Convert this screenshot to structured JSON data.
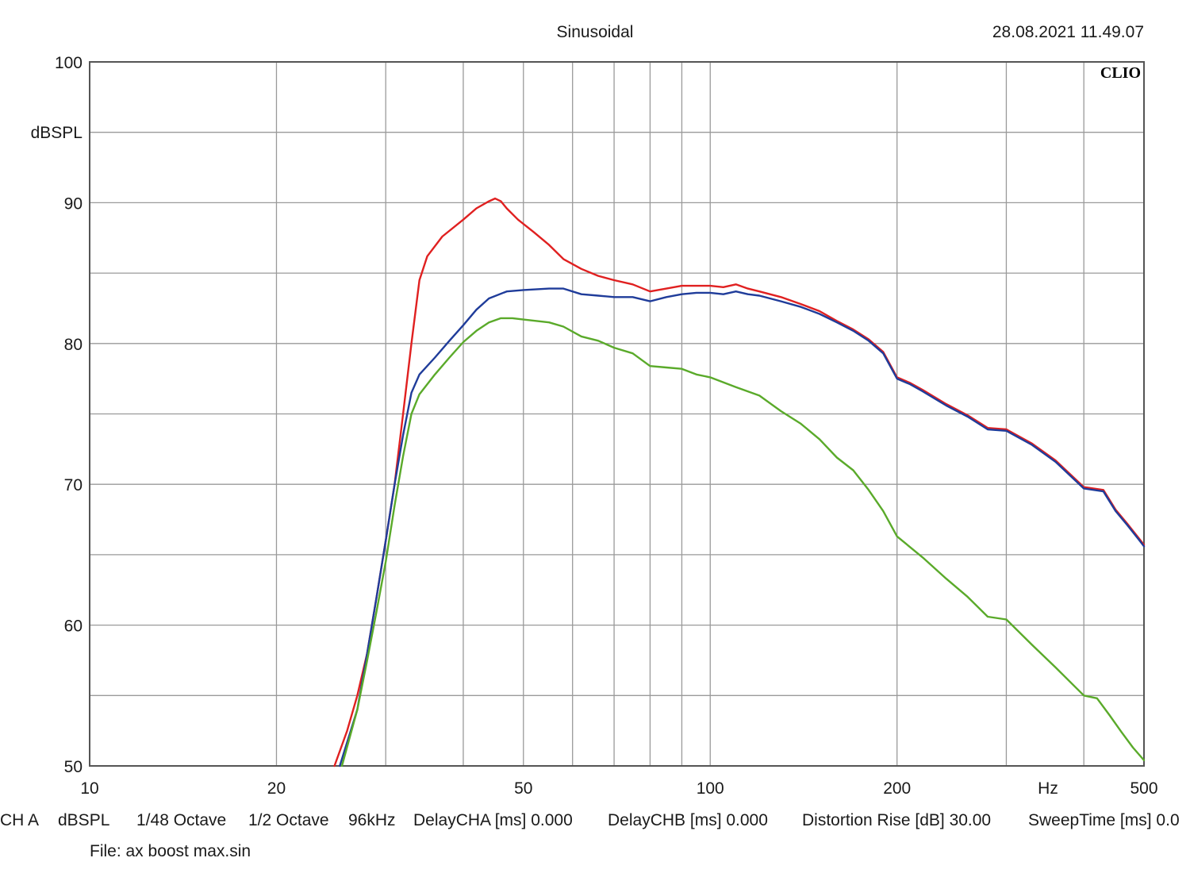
{
  "header": {
    "title": "Sinusoidal",
    "timestamp": "28.08.2021 11.49.07",
    "logo": "CLIO"
  },
  "footer": {
    "settings": [
      "CH A",
      "dBSPL",
      "1/48 Octave",
      "1/2 Octave",
      "96kHz",
      "DelayCHA [ms] 0.000",
      "DelayCHB [ms] 0.000",
      "Distortion Rise [dB] 30.00",
      "SweepTime [ms] 0.0"
    ],
    "file": "File: ax boost max.sin"
  },
  "chart_data": {
    "type": "line",
    "title": "Sinusoidal",
    "ylabel": "dBSPL",
    "xlabel": "Hz",
    "x_scale": "log",
    "xlim": [
      10,
      500
    ],
    "ylim": [
      50,
      100
    ],
    "x_ticks": [
      10,
      20,
      50,
      100,
      200,
      500
    ],
    "x_tick_labels": [
      "10",
      "20",
      "50",
      "100",
      "200",
      "500"
    ],
    "y_ticks": [
      50,
      60,
      70,
      80,
      90,
      100
    ],
    "y_tick_labels": [
      "50",
      "60",
      "70",
      "80",
      "90",
      "100"
    ],
    "grid": true,
    "series": [
      {
        "color": "#e02020",
        "points": [
          [
            24.8,
            50
          ],
          [
            26,
            52.5
          ],
          [
            27,
            55
          ],
          [
            28,
            58
          ],
          [
            29,
            62
          ],
          [
            30,
            66
          ],
          [
            31,
            70
          ],
          [
            32,
            75
          ],
          [
            33,
            80
          ],
          [
            34,
            84.5
          ],
          [
            35,
            86.2
          ],
          [
            37,
            87.6
          ],
          [
            40,
            88.8
          ],
          [
            42,
            89.6
          ],
          [
            44,
            90.1
          ],
          [
            45,
            90.3
          ],
          [
            46,
            90.1
          ],
          [
            47,
            89.6
          ],
          [
            49,
            88.8
          ],
          [
            52,
            87.9
          ],
          [
            55,
            87
          ],
          [
            58,
            86
          ],
          [
            62,
            85.3
          ],
          [
            66,
            84.8
          ],
          [
            70,
            84.5
          ],
          [
            75,
            84.2
          ],
          [
            80,
            83.7
          ],
          [
            85,
            83.9
          ],
          [
            90,
            84.1
          ],
          [
            95,
            84.1
          ],
          [
            100,
            84.1
          ],
          [
            105,
            84
          ],
          [
            110,
            84.2
          ],
          [
            115,
            83.9
          ],
          [
            120,
            83.7
          ],
          [
            130,
            83.3
          ],
          [
            140,
            82.8
          ],
          [
            150,
            82.3
          ],
          [
            160,
            81.6
          ],
          [
            170,
            81
          ],
          [
            180,
            80.3
          ],
          [
            190,
            79.4
          ],
          [
            200,
            77.6
          ],
          [
            210,
            77.2
          ],
          [
            220,
            76.7
          ],
          [
            240,
            75.7
          ],
          [
            260,
            74.9
          ],
          [
            280,
            74
          ],
          [
            300,
            73.9
          ],
          [
            330,
            72.9
          ],
          [
            360,
            71.7
          ],
          [
            400,
            69.8
          ],
          [
            430,
            69.6
          ],
          [
            450,
            68.2
          ],
          [
            470,
            67.2
          ],
          [
            490,
            66.2
          ],
          [
            500,
            65.7
          ]
        ]
      },
      {
        "color": "#1f3c9a",
        "points": [
          [
            25.3,
            50
          ],
          [
            27,
            54
          ],
          [
            28,
            58
          ],
          [
            29,
            62
          ],
          [
            30,
            66
          ],
          [
            31,
            70
          ],
          [
            32,
            73.5
          ],
          [
            33,
            76.5
          ],
          [
            34,
            77.8
          ],
          [
            36,
            79
          ],
          [
            38,
            80.2
          ],
          [
            40,
            81.3
          ],
          [
            42,
            82.4
          ],
          [
            44,
            83.2
          ],
          [
            47,
            83.7
          ],
          [
            50,
            83.8
          ],
          [
            55,
            83.9
          ],
          [
            58,
            83.9
          ],
          [
            62,
            83.5
          ],
          [
            66,
            83.4
          ],
          [
            70,
            83.3
          ],
          [
            75,
            83.3
          ],
          [
            80,
            83
          ],
          [
            85,
            83.3
          ],
          [
            90,
            83.5
          ],
          [
            95,
            83.6
          ],
          [
            100,
            83.6
          ],
          [
            105,
            83.5
          ],
          [
            110,
            83.7
          ],
          [
            115,
            83.5
          ],
          [
            120,
            83.4
          ],
          [
            130,
            83
          ],
          [
            140,
            82.6
          ],
          [
            150,
            82.1
          ],
          [
            160,
            81.5
          ],
          [
            170,
            80.9
          ],
          [
            180,
            80.2
          ],
          [
            190,
            79.3
          ],
          [
            200,
            77.5
          ],
          [
            210,
            77.1
          ],
          [
            220,
            76.6
          ],
          [
            240,
            75.6
          ],
          [
            260,
            74.8
          ],
          [
            280,
            73.9
          ],
          [
            300,
            73.8
          ],
          [
            330,
            72.8
          ],
          [
            360,
            71.6
          ],
          [
            400,
            69.7
          ],
          [
            430,
            69.5
          ],
          [
            450,
            68.1
          ],
          [
            470,
            67.1
          ],
          [
            490,
            66.1
          ],
          [
            500,
            65.6
          ]
        ]
      },
      {
        "color": "#5aaa2a",
        "points": [
          [
            25.5,
            50
          ],
          [
            27,
            54
          ],
          [
            28,
            57.5
          ],
          [
            29,
            61
          ],
          [
            30,
            64.5
          ],
          [
            31,
            68.5
          ],
          [
            32,
            72
          ],
          [
            33,
            75
          ],
          [
            34,
            76.4
          ],
          [
            36,
            77.8
          ],
          [
            38,
            79
          ],
          [
            40,
            80.1
          ],
          [
            42,
            80.9
          ],
          [
            44,
            81.5
          ],
          [
            46,
            81.8
          ],
          [
            48,
            81.8
          ],
          [
            50,
            81.7
          ],
          [
            55,
            81.5
          ],
          [
            58,
            81.2
          ],
          [
            62,
            80.5
          ],
          [
            66,
            80.2
          ],
          [
            70,
            79.7
          ],
          [
            75,
            79.3
          ],
          [
            80,
            78.4
          ],
          [
            85,
            78.3
          ],
          [
            90,
            78.2
          ],
          [
            95,
            77.8
          ],
          [
            100,
            77.6
          ],
          [
            110,
            76.9
          ],
          [
            120,
            76.3
          ],
          [
            130,
            75.2
          ],
          [
            140,
            74.3
          ],
          [
            150,
            73.2
          ],
          [
            160,
            71.9
          ],
          [
            170,
            71
          ],
          [
            180,
            69.6
          ],
          [
            190,
            68.1
          ],
          [
            200,
            66.3
          ],
          [
            220,
            64.8
          ],
          [
            240,
            63.3
          ],
          [
            260,
            62
          ],
          [
            280,
            60.6
          ],
          [
            300,
            60.4
          ],
          [
            330,
            58.6
          ],
          [
            360,
            57
          ],
          [
            400,
            55
          ],
          [
            420,
            54.8
          ],
          [
            440,
            53.6
          ],
          [
            460,
            52.4
          ],
          [
            480,
            51.3
          ],
          [
            500,
            50.4
          ]
        ]
      }
    ]
  }
}
